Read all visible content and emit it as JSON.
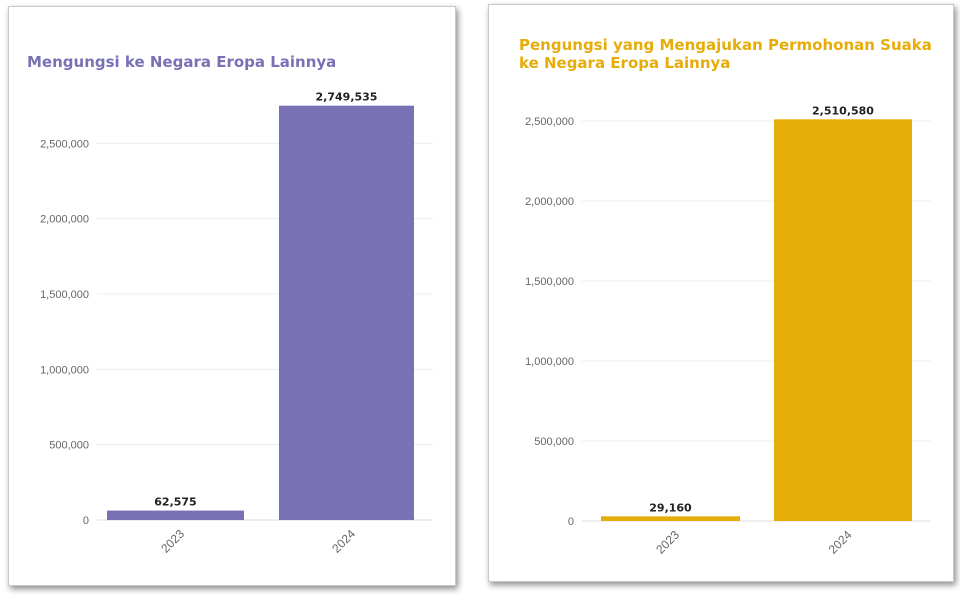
{
  "colors": {
    "series_0": "#7872b4",
    "series_1": "#e6ac08"
  },
  "chart_data": [
    {
      "type": "bar",
      "title": "Mengungsi ke Negara Eropa Lainnya",
      "categories": [
        "2023",
        "2024"
      ],
      "values": [
        62575,
        2749535
      ],
      "value_labels": [
        "62,575",
        "2,749,535"
      ],
      "ylim": [
        0,
        2900000
      ],
      "yticks": [
        0,
        500000,
        1000000,
        1500000,
        2000000,
        2500000
      ],
      "ytick_labels": [
        "0",
        "500,000",
        "1,000,000",
        "1,500,000",
        "2,000,000",
        "2,500,000"
      ],
      "xlabel": "",
      "ylabel": "",
      "grid": true,
      "color": "#7872b4"
    },
    {
      "type": "bar",
      "title": "Pengungsi yang Mengajukan Permohonan Suaka ke Negara Eropa Lainnya",
      "categories": [
        "2023",
        "2024"
      ],
      "values": [
        29160,
        2510580
      ],
      "value_labels": [
        "29,160",
        "2,510,580"
      ],
      "ylim": [
        0,
        2750000
      ],
      "yticks": [
        0,
        500000,
        1000000,
        1500000,
        2000000,
        2500000
      ],
      "ytick_labels": [
        "0",
        "500,000",
        "1,000,000",
        "1,500,000",
        "2,000,000",
        "2,500,000"
      ],
      "xlabel": "",
      "ylabel": "",
      "grid": true,
      "color": "#e6ac08"
    }
  ]
}
